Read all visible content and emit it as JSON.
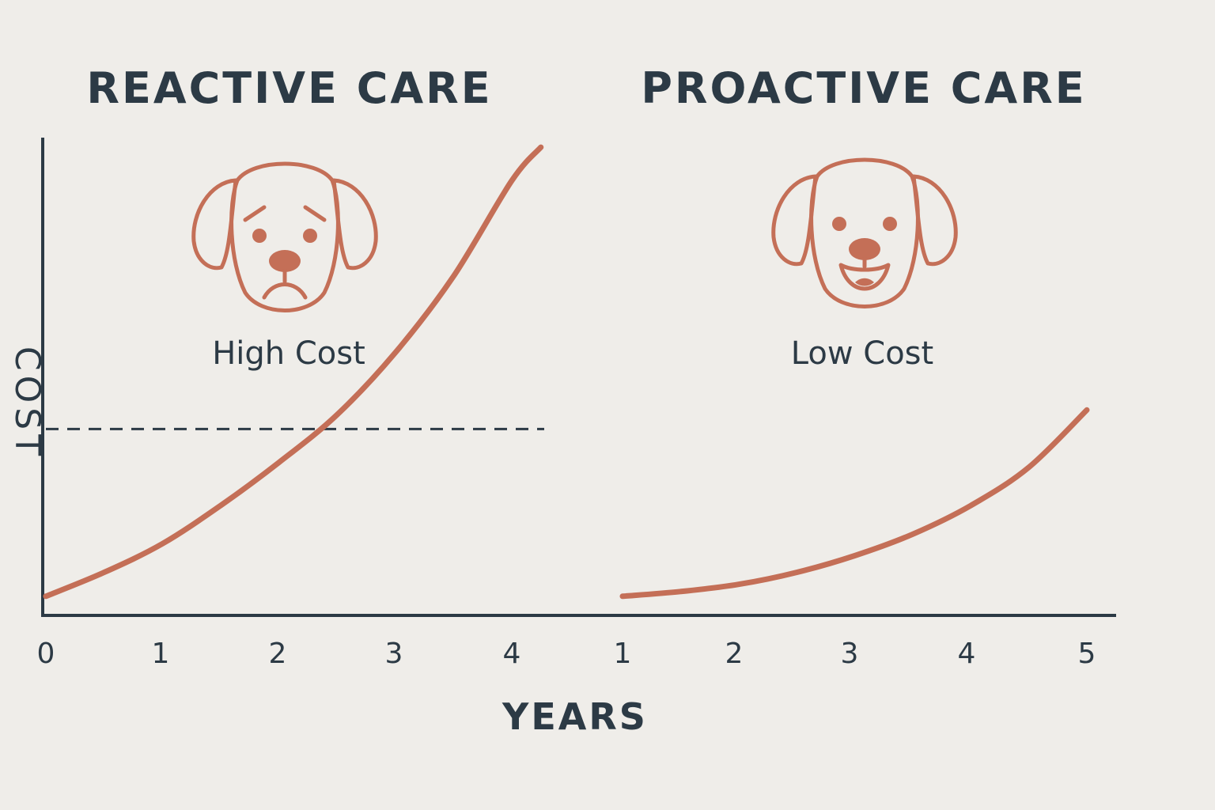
{
  "colors": {
    "background": "#efede9",
    "ink": "#2c3a45",
    "accent": "#c46f57"
  },
  "chart_data": {
    "type": "line",
    "xlabel": "YEARS",
    "ylabel": "COST",
    "panels": [
      {
        "title": "REACTIVE CARE",
        "caption": "High Cost",
        "icon": "sad-dog-icon",
        "x_ticks": [
          "0",
          "1",
          "2",
          "3",
          "4"
        ],
        "series": [
          {
            "x": [
              0,
              0.5,
              1,
              1.5,
              2,
              2.5,
              3,
              3.5,
              4,
              4.25
            ],
            "y": [
              0.04,
              0.09,
              0.15,
              0.23,
              0.32,
              0.42,
              0.55,
              0.71,
              0.91,
              0.98
            ]
          }
        ],
        "reference_line": {
          "y": 0.39,
          "style": "dashed"
        },
        "ylim": [
          0,
          1
        ]
      },
      {
        "title": "PROACTIVE CARE",
        "caption": "Low Cost",
        "icon": "happy-dog-icon",
        "x_ticks": [
          "1",
          "2",
          "3",
          "4",
          "5"
        ],
        "series": [
          {
            "x": [
              1,
              1.5,
              2,
              2.5,
              3,
              3.5,
              4,
              4.5,
              5
            ],
            "y": [
              0.04,
              0.05,
              0.065,
              0.09,
              0.125,
              0.17,
              0.23,
              0.31,
              0.43
            ]
          }
        ],
        "ylim": [
          0,
          1
        ]
      }
    ]
  }
}
